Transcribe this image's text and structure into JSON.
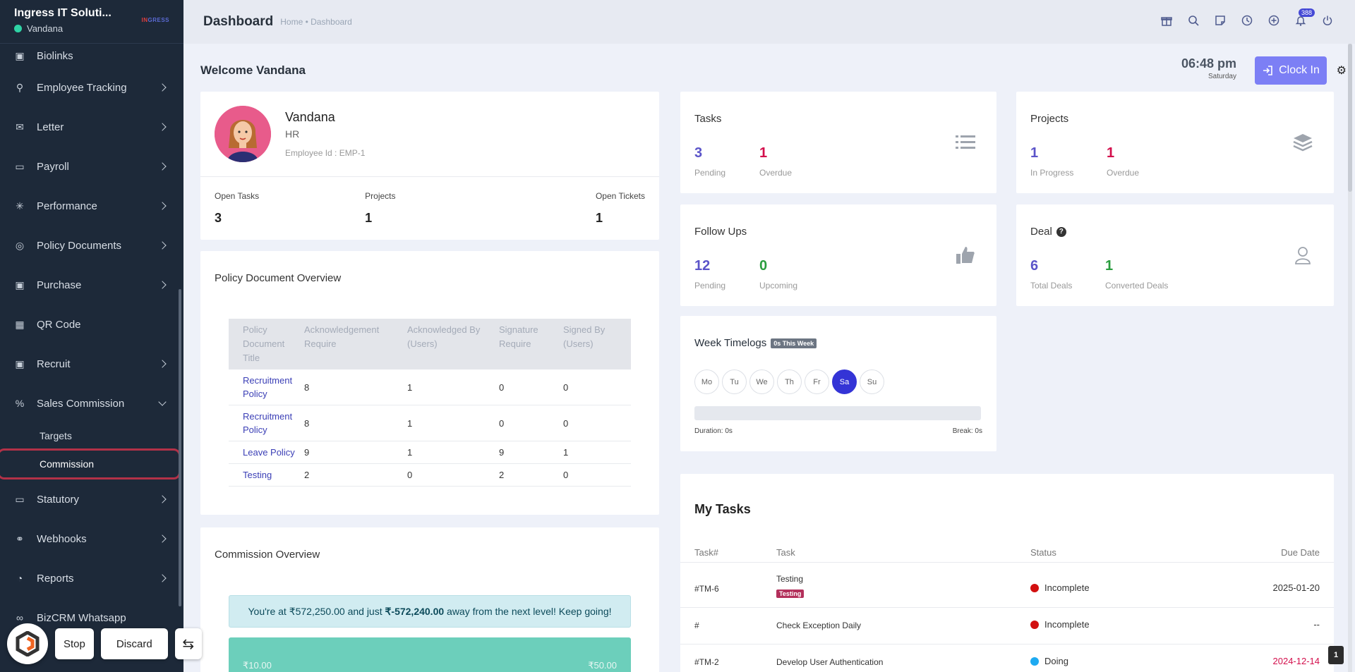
{
  "sidebar": {
    "company": "Ingress IT Soluti...",
    "user": "Vandana",
    "logo_text": "IN",
    "logo_suffix": "GRESS",
    "items": [
      {
        "label": "Biolinks",
        "icon": "biolinks-icon",
        "has_children": false
      },
      {
        "label": "Employee Tracking",
        "icon": "bicycle-icon",
        "has_children": true
      },
      {
        "label": "Letter",
        "icon": "envelope-icon",
        "has_children": true
      },
      {
        "label": "Payroll",
        "icon": "wallet-icon",
        "has_children": true
      },
      {
        "label": "Performance",
        "icon": "asterisk-icon",
        "has_children": true
      },
      {
        "label": "Policy Documents",
        "icon": "policy-icon",
        "has_children": true
      },
      {
        "label": "Purchase",
        "icon": "purchase-icon",
        "has_children": true
      },
      {
        "label": "QR Code",
        "icon": "qr-code-icon",
        "has_children": false
      },
      {
        "label": "Recruit",
        "icon": "recruit-icon",
        "has_children": true
      }
    ],
    "sales_commission": {
      "label": "Sales Commission",
      "children": [
        "Targets",
        "Commission"
      ],
      "active_child": "Commission"
    },
    "items_after": [
      {
        "label": "Statutory",
        "icon": "statutory-icon",
        "has_children": true
      },
      {
        "label": "Webhooks",
        "icon": "webhooks-icon",
        "has_children": true
      },
      {
        "label": "Reports",
        "icon": "reports-icon",
        "has_children": true
      },
      {
        "label": "BizCRM Whatsapp",
        "icon": "link-icon",
        "has_children": false
      }
    ]
  },
  "floating": {
    "stop": "Stop",
    "discard": "Discard"
  },
  "header": {
    "title": "Dashboard",
    "breadcrumb": "Home • Dashboard",
    "notification_count": "388"
  },
  "welcome": "Welcome Vandana",
  "clock": {
    "time": "06:48 pm",
    "day": "Saturday",
    "button": "Clock In"
  },
  "profile": {
    "name": "Vandana",
    "role": "HR",
    "employee_id": "Employee Id : EMP-1",
    "stats": [
      {
        "label": "Open Tasks",
        "value": "3"
      },
      {
        "label": "Projects",
        "value": "1"
      },
      {
        "label": "Open Tickets",
        "value": "1"
      }
    ]
  },
  "policy": {
    "title": "Policy Document Overview",
    "headers": [
      "Policy Document Title",
      "Acknowledgement Require",
      "Acknowledged By (Users)",
      "Signature Require",
      "Signed By (Users)"
    ],
    "rows": [
      [
        "Recruitment Policy",
        "8",
        "1",
        "0",
        "0"
      ],
      [
        "Recruitment Policy",
        "8",
        "1",
        "0",
        "0"
      ],
      [
        "Leave Policy",
        "9",
        "1",
        "9",
        "1"
      ],
      [
        "Testing",
        "2",
        "0",
        "2",
        "0"
      ]
    ]
  },
  "commission": {
    "title": "Commission Overview",
    "alert_prefix": "You're at ₹572,250.00 and just ",
    "alert_amount": "₹-572,240.00",
    "alert_suffix": " away from the next level! Keep going!",
    "bar_left": "₹10.00",
    "bar_right": "₹50.00"
  },
  "tasks_card": {
    "title": "Tasks",
    "v1": "3",
    "l1": "Pending",
    "v2": "1",
    "l2": "Overdue"
  },
  "projects_card": {
    "title": "Projects",
    "v1": "1",
    "l1": "In Progress",
    "v2": "1",
    "l2": "Overdue"
  },
  "followups_card": {
    "title": "Follow Ups",
    "v1": "12",
    "l1": "Pending",
    "v2": "0",
    "l2": "Upcoming"
  },
  "deal_card": {
    "title": "Deal",
    "v1": "6",
    "l1": "Total Deals",
    "v2": "1",
    "l2": "Converted Deals"
  },
  "timelog": {
    "title": "Week Timelogs",
    "badge": "0s This Week",
    "days": [
      "Mo",
      "Tu",
      "We",
      "Th",
      "Fr",
      "Sa",
      "Su"
    ],
    "active_day": "Sa",
    "duration": "Duration: 0s",
    "break": "Break: 0s"
  },
  "my_tasks": {
    "title": "My Tasks",
    "headers": [
      "Task#",
      "Task",
      "Status",
      "Due Date"
    ],
    "rows": [
      {
        "id": "#TM-6",
        "task": "Testing",
        "tag": "Testing",
        "status": "Incomplete",
        "status_color": "#d21010",
        "due": "2025-01-20",
        "due_color": "#333333"
      },
      {
        "id": "#",
        "task": "Check Exception Daily",
        "tag": "",
        "status": "Incomplete",
        "status_color": "#d21010",
        "due": "--",
        "due_color": "#333333"
      },
      {
        "id": "#TM-2",
        "task": "Develop User Authentication",
        "tag": "",
        "status": "Doing",
        "status_color": "#1eaaf1",
        "due": "2024-12-14",
        "due_color": "#d30f4c"
      }
    ]
  },
  "page_number": "1"
}
